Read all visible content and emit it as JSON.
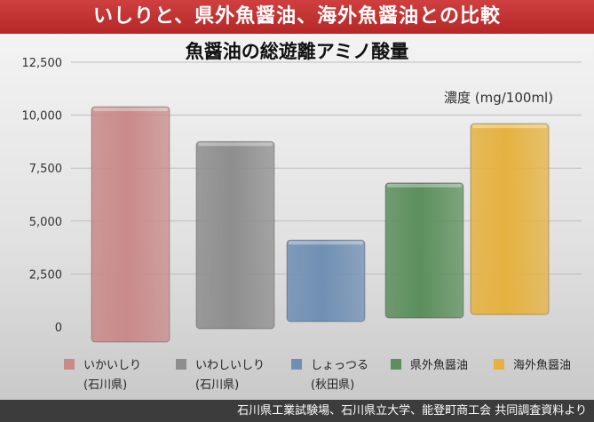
{
  "header": {
    "title": "いしりと、県外魚醤油、海外魚醤油との比較"
  },
  "footer": {
    "source": "石川県工業試験場、石川県立大学、能登町商工会 共同調査資料より"
  },
  "chart_data": {
    "type": "bar",
    "title": "魚醤油の総遊離アミノ酸量",
    "ylabel": "濃度 (mg/100ml)",
    "ylim": [
      0,
      12500
    ],
    "yticks": [
      0,
      2500,
      5000,
      7500,
      10000,
      12500
    ],
    "ytick_labels": [
      "0",
      "2,500",
      "5,000",
      "7,500",
      "10,000",
      "12,500"
    ],
    "grid": true,
    "legend_position": "bottom",
    "categories": [
      "いかいしり",
      "いわしいしり",
      "しょっつる",
      "県外魚醤油",
      "海外魚醤油"
    ],
    "category_notes": [
      "(石川県)",
      "(石川県)",
      "(秋田県)",
      "",
      ""
    ],
    "values": [
      10400,
      8750,
      4100,
      6800,
      9600
    ],
    "colors": [
      "#c98a8a",
      "#8e8e8e",
      "#6f8fb3",
      "#5c8f5c",
      "#e5b240"
    ]
  }
}
